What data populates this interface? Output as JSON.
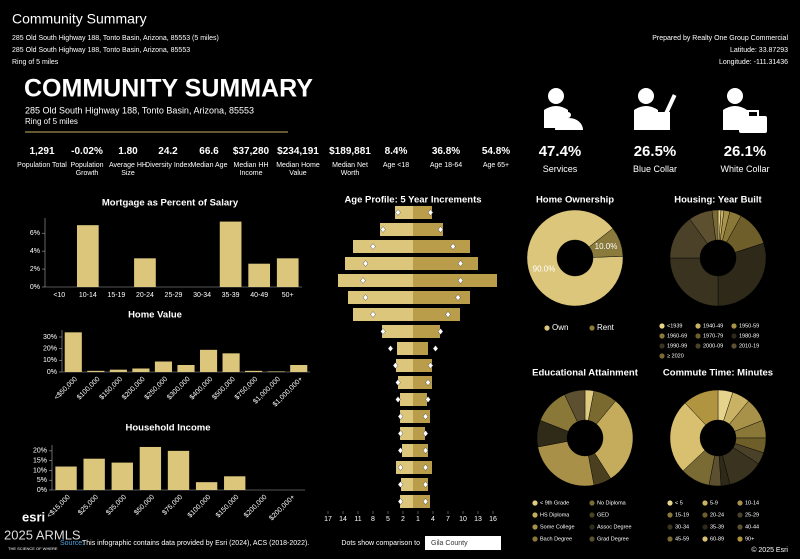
{
  "header": {
    "title": "Community Summary",
    "line1": "285 Old South Highway 188, Tonto Basin, Arizona, 85553 (5 miles)",
    "line2": "285 Old South Highway 188, Tonto Basin, Arizona, 85553",
    "line3": "Ring of 5 miles",
    "prepared": "Prepared by Realty One Group Commercial",
    "latitude": "Latitude: 33.87293",
    "longitude": "Longitude: -111.31436"
  },
  "main": {
    "title": "COMMUNITY SUMMARY",
    "address": "285 Old South Highway 188, Tonto Basin, Arizona, 85553",
    "ring": "Ring of 5 miles"
  },
  "stats": [
    {
      "value": "1,291",
      "label": "Population Total"
    },
    {
      "value": "-0.02%",
      "label": "Population Growth"
    },
    {
      "value": "1.80",
      "label": "Average HH Size"
    },
    {
      "value": "24.2",
      "label": "Diversity Index"
    },
    {
      "value": "66.6",
      "label": "Median Age"
    },
    {
      "value": "$37,280",
      "label": "Median HH Income"
    },
    {
      "value": "$234,191",
      "label": "Median Home Value"
    },
    {
      "value": "$189,881",
      "label": "Median Net Worth"
    },
    {
      "value": "8.4%",
      "label": "Age <18"
    },
    {
      "value": "36.8%",
      "label": "Age 18-64"
    },
    {
      "value": "54.8%",
      "label": "Age 65+"
    }
  ],
  "occupation": [
    {
      "value": "47.4%",
      "label": "Services"
    },
    {
      "value": "26.5%",
      "label": "Blue Collar"
    },
    {
      "value": "26.1%",
      "label": "White Collar"
    }
  ],
  "chart_data": [
    {
      "type": "bar",
      "title": "Mortgage as Percent of Salary",
      "categories": [
        "<10",
        "10-14",
        "15-19",
        "20-24",
        "25-29",
        "30-34",
        "35-39",
        "40-49",
        "50+"
      ],
      "values": [
        0,
        6.9,
        0,
        3.2,
        0,
        0,
        7.3,
        2.6,
        3.2
      ],
      "color": "#dcc67c",
      "ylim": [
        0,
        7.7
      ],
      "yticks": [
        {
          "value": 0,
          "label": "0%"
        },
        {
          "value": 2,
          "label": "2%"
        },
        {
          "value": 4,
          "label": "4%"
        },
        {
          "value": 6,
          "label": "6%"
        }
      ]
    },
    {
      "type": "bar",
      "title": "Home Value",
      "categories": [
        "<$50,000",
        "$100,000",
        "$150,000",
        "$200,000",
        "$250,000",
        "$300,000",
        "$400,000",
        "$500,000",
        "$750,000",
        "$1,000,000",
        "$1,000,000+"
      ],
      "values": [
        34,
        1,
        2,
        3,
        9,
        6,
        19,
        16,
        1,
        0.5,
        6
      ],
      "color": "#dcc67c",
      "ylim": [
        0,
        36
      ],
      "yticks": [
        {
          "value": 0,
          "label": "0%"
        },
        {
          "value": 10,
          "label": "10%"
        },
        {
          "value": 20,
          "label": "20%"
        },
        {
          "value": 30,
          "label": "30%"
        }
      ]
    },
    {
      "type": "bar",
      "title": "Household Income",
      "categories": [
        "<$15,000",
        "$25,000",
        "$35,000",
        "$50,000",
        "$75,000",
        "$100,000",
        "$150,000",
        "$200,000",
        "$200,000+"
      ],
      "values": [
        12,
        16,
        14,
        22,
        20,
        4,
        7,
        0,
        0
      ],
      "color": "#dcc67c",
      "ylim": [
        0,
        23
      ],
      "yticks": [
        {
          "value": 0,
          "label": "0%"
        },
        {
          "value": 5,
          "label": "5%"
        },
        {
          "value": 10,
          "label": "10%"
        },
        {
          "value": 15,
          "label": "15%"
        },
        {
          "value": 20,
          "label": "20%"
        }
      ]
    },
    {
      "type": "pyramid",
      "title": "Age Profile: 5 Year Increments",
      "xlim": [
        -17.5,
        17.5
      ],
      "xticks": [
        {
          "value": -17,
          "label": "17"
        },
        {
          "value": -14,
          "label": "14"
        },
        {
          "value": -11,
          "label": "11"
        },
        {
          "value": -8,
          "label": "8"
        },
        {
          "value": -5,
          "label": "5"
        },
        {
          "value": -2,
          "label": "2"
        },
        1,
        4,
        7,
        10,
        13,
        16
      ],
      "series": [
        {
          "color": "#dcc67c",
          "values": [
            -3.6,
            -6.6,
            -12,
            -13.6,
            -15,
            -13,
            -12,
            -6.2,
            -3.2,
            -3.4,
            -3,
            -2.6,
            -2.6,
            -2.6,
            -2.2,
            -3.4,
            -2.4,
            -2.6
          ]
        },
        {
          "color": "#b99d4a",
          "values": [
            3.8,
            6,
            11.4,
            13,
            16.8,
            11.4,
            9.4,
            5.4,
            3,
            3.8,
            3.8,
            2.8,
            3.4,
            2.4,
            3,
            3.8,
            3,
            3.4
          ]
        }
      ],
      "comparison_label": "Dots show comparison to",
      "comparison": {
        "name": "Gila County",
        "left": [
          -3,
          -6,
          -8,
          -9.5,
          -10,
          -9.5,
          -8,
          -6,
          -4.5,
          -3.5,
          -3,
          -3,
          -2.5,
          -2.5,
          -2.5,
          -2.5,
          -2.5,
          -2.5
        ],
        "right": [
          3.5,
          5.5,
          8,
          9.5,
          9.5,
          9,
          7,
          5.5,
          4.5,
          3.5,
          3,
          3,
          2.5,
          2.5,
          2.5,
          2.5,
          2.5,
          2.5
        ]
      }
    },
    {
      "type": "donut",
      "title": "Home Ownership",
      "categories": [
        "Own",
        "Rent"
      ],
      "values": [
        90,
        10
      ],
      "value_labels": [
        "90.0%",
        "10.0%"
      ],
      "colors": [
        "#dcc67c",
        "#8a7a3c"
      ]
    },
    {
      "type": "donut",
      "title": "Housing: Year Built",
      "categories": [
        "<1939",
        "1940-49",
        "1950-59",
        "1960-69",
        "1970-79",
        "1980-89",
        "1990-99",
        "2000-09",
        "2010-19",
        "≥ 2020"
      ],
      "values": [
        1,
        1,
        2,
        4,
        12,
        30,
        25,
        15,
        8,
        2
      ],
      "colors": [
        "#e6d38c",
        "#c9b264",
        "#a8924a",
        "#8a7838",
        "#6e5f2a",
        "#2e2919",
        "#3a3320",
        "#4a4128",
        "#5c5030",
        "#7a6a34"
      ]
    },
    {
      "type": "donut",
      "title": "Educational Attainment",
      "categories": [
        "< 9th Grade",
        "No Diploma",
        "HS Diploma",
        "GED",
        "Some College",
        "Assoc Degree",
        "Bach Degree",
        "Grad Degree"
      ],
      "values": [
        3,
        8,
        30,
        6,
        25,
        9,
        12,
        7
      ],
      "colors": [
        "#e0cc80",
        "#7a6a30",
        "#c4ac5c",
        "#4a4020",
        "#a89048",
        "#302a18",
        "#8a7838",
        "#5c5030"
      ]
    },
    {
      "type": "donut",
      "title": "Commute Time: Minutes",
      "categories": [
        "< 5",
        "5-9",
        "10-14",
        "15-19",
        "20-24",
        "25-29",
        "30-34",
        "35-39",
        "40-44",
        "45-59",
        "60-89",
        "90+"
      ],
      "values": [
        5,
        6,
        8,
        6,
        5,
        4,
        12,
        3,
        4,
        10,
        25,
        12
      ],
      "colors": [
        "#e6d38c",
        "#c9b264",
        "#a8924a",
        "#8a7838",
        "#6e5f2a",
        "#4a4128",
        "#3a3320",
        "#2e2919",
        "#5c5030",
        "#7a6a34",
        "#d9c070",
        "#b09440"
      ]
    }
  ],
  "footer": {
    "source": "Source:",
    "note": "This infographic contains data provided by Esri (2024), ACS (2018-2022).",
    "copyright": "© 2025 Esri",
    "watermark": "2025 ARMLS",
    "logo": "esri",
    "tagline": "THE SCIENCE OF WHERE"
  }
}
